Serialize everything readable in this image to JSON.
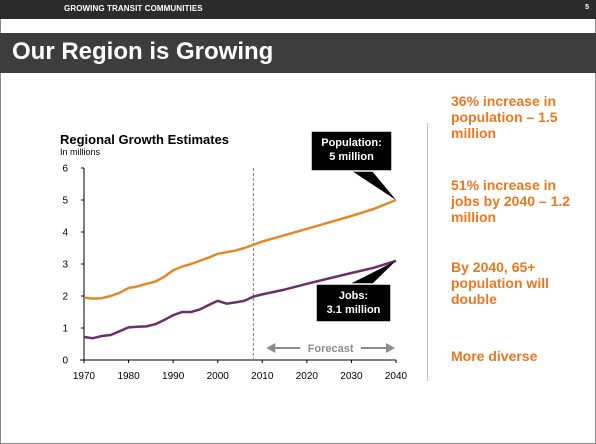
{
  "header": {
    "section_label": "GROWING TRANSIT COMMUNITIES",
    "page_number": "5"
  },
  "slide": {
    "title": "Our Region is Growing"
  },
  "bullets": [
    "36% increase in population – 1.5 million",
    "51% increase in jobs by 2040 – 1.2 million",
    "By 2040, 65+ population will double",
    "More diverse"
  ],
  "colors": {
    "accent": "#e87722",
    "population": "#e0892a",
    "jobs": "#6b2f6e",
    "bar": "#2b2b2b"
  },
  "chart_data": {
    "type": "line",
    "title": "Regional Growth Estimates",
    "subtitle": "In millions",
    "xlabel": "",
    "ylabel": "",
    "xlim": [
      1970,
      2040
    ],
    "ylim": [
      0,
      6
    ],
    "x_ticks": [
      "1970",
      "1980",
      "1990",
      "2000",
      "2010",
      "2020",
      "2030",
      "2040"
    ],
    "y_ticks": [
      "0",
      "1",
      "2",
      "3",
      "4",
      "5",
      "6"
    ],
    "grid": false,
    "legend": "none",
    "divider_year": 2008,
    "forecast_label": "Forecast",
    "forecast_range": [
      2010,
      2040
    ],
    "series": [
      {
        "name": "Population",
        "color": "#e0892a",
        "x": [
          1970,
          1972,
          1974,
          1976,
          1978,
          1980,
          1982,
          1984,
          1986,
          1988,
          1990,
          1992,
          1994,
          1996,
          1998,
          2000,
          2002,
          2004,
          2006,
          2008,
          2010,
          2015,
          2020,
          2025,
          2030,
          2035,
          2040
        ],
        "y": [
          1.95,
          1.92,
          1.93,
          2.0,
          2.1,
          2.25,
          2.3,
          2.38,
          2.45,
          2.6,
          2.8,
          2.92,
          3.0,
          3.1,
          3.2,
          3.32,
          3.37,
          3.42,
          3.5,
          3.6,
          3.7,
          3.9,
          4.1,
          4.3,
          4.5,
          4.72,
          5.0
        ]
      },
      {
        "name": "Jobs",
        "color": "#6b2f6e",
        "x": [
          1970,
          1972,
          1974,
          1976,
          1978,
          1980,
          1982,
          1984,
          1986,
          1988,
          1990,
          1992,
          1994,
          1996,
          1998,
          2000,
          2002,
          2004,
          2006,
          2008,
          2010,
          2015,
          2020,
          2025,
          2030,
          2035,
          2040
        ],
        "y": [
          0.72,
          0.68,
          0.75,
          0.78,
          0.9,
          1.02,
          1.04,
          1.05,
          1.12,
          1.25,
          1.4,
          1.5,
          1.5,
          1.58,
          1.72,
          1.85,
          1.76,
          1.8,
          1.85,
          1.98,
          2.05,
          2.2,
          2.38,
          2.55,
          2.72,
          2.88,
          3.1
        ]
      }
    ],
    "annotations": [
      {
        "text": [
          "Population:",
          "5 million"
        ],
        "target": [
          2040,
          5.0
        ]
      },
      {
        "text": [
          "Jobs:",
          "3.1 million"
        ],
        "target": [
          2040,
          3.1
        ]
      }
    ]
  }
}
